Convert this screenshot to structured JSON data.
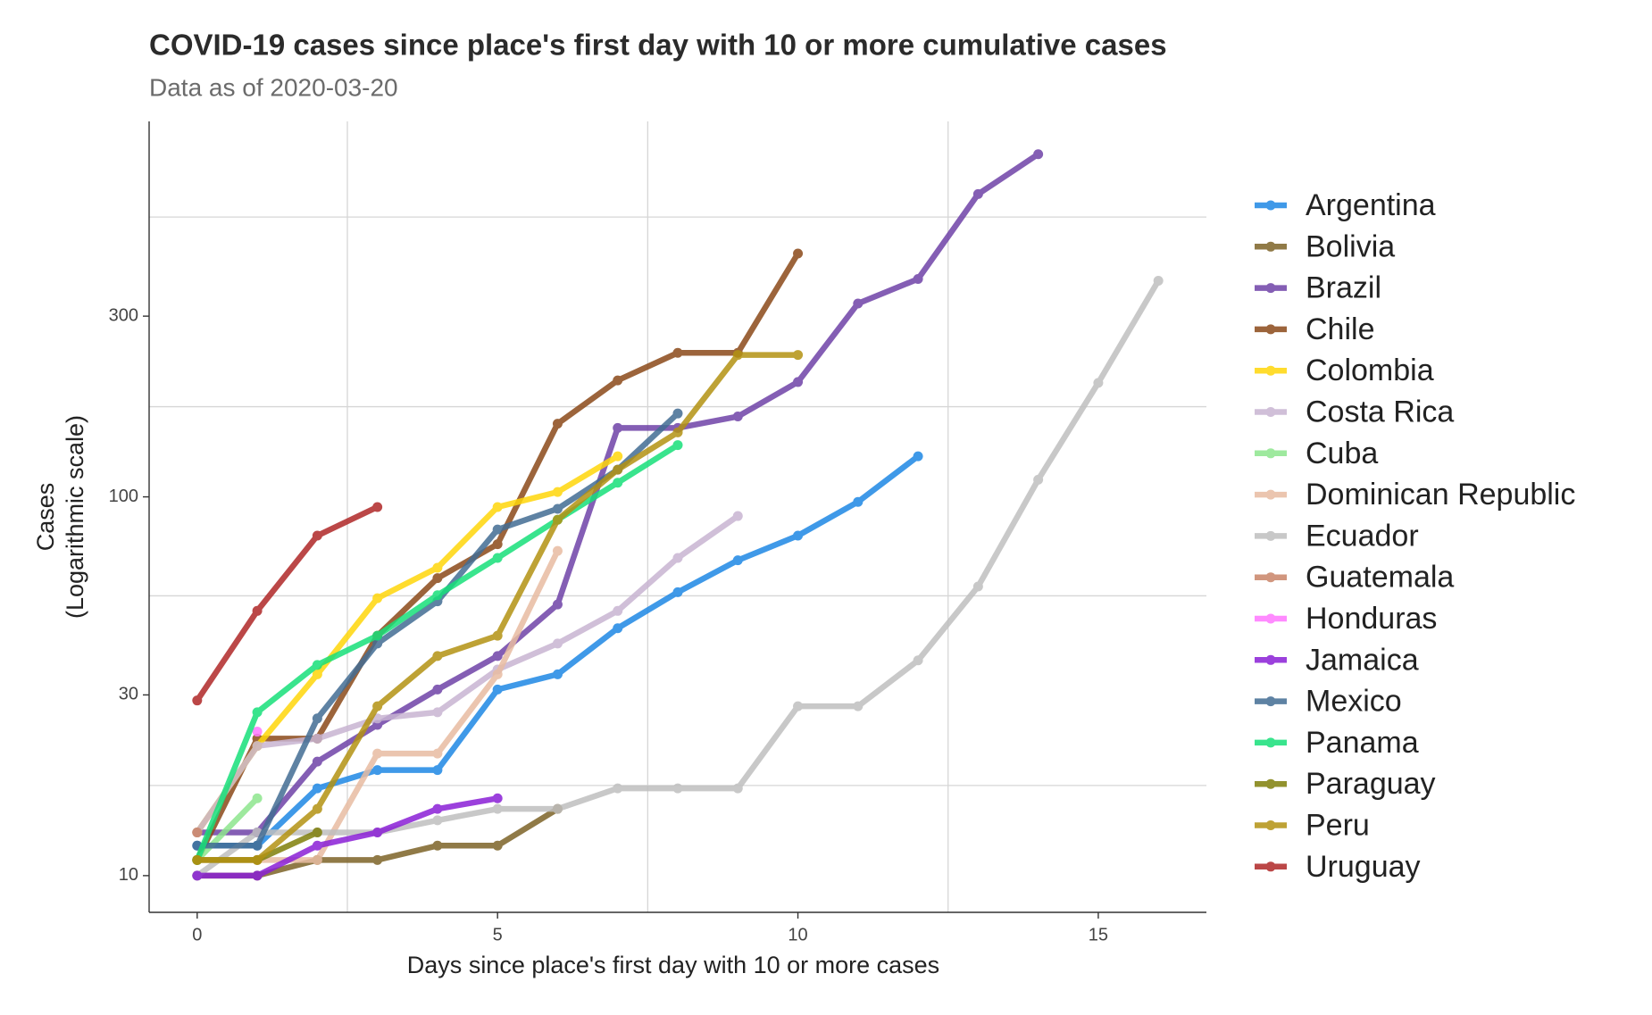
{
  "chart_data": {
    "type": "line",
    "title": "COVID-19 cases since place's first day with 10 or more cumulative cases",
    "subtitle": "Data as of 2020-03-20",
    "x_label": "Days since place's first day with 10 or more cases",
    "y_label": [
      "Cases",
      "(Logarithmic scale)"
    ],
    "y_log_scale": true,
    "xlim": [
      -0.8,
      16.8
    ],
    "ylim": [
      8,
      980
    ],
    "xticks": [
      0,
      5,
      10,
      15
    ],
    "yticks": [
      10,
      30,
      100,
      300
    ],
    "x_minor_grid": [
      2.5,
      7.5,
      12.5
    ],
    "y_minor_grid": [
      17.3,
      54.8,
      173,
      548
    ],
    "legend_position": "right",
    "series": [
      {
        "name": "Argentina",
        "color": "#1e88e5",
        "x": [
          0,
          1,
          2,
          3,
          4,
          5,
          6,
          7,
          8,
          9,
          10,
          11,
          12
        ],
        "values": [
          12,
          12,
          17,
          19,
          19,
          31,
          34,
          45,
          56,
          68,
          79,
          97,
          128
        ]
      },
      {
        "name": "Bolivia",
        "color": "#7d6328",
        "x": [
          0,
          1,
          2,
          3,
          4,
          5,
          6
        ],
        "values": [
          10,
          10,
          11,
          11,
          12,
          12,
          15
        ]
      },
      {
        "name": "Brazil",
        "color": "#6f42a8",
        "x": [
          0,
          1,
          2,
          3,
          4,
          5,
          6,
          7,
          8,
          9,
          10,
          11,
          12,
          13,
          14
        ],
        "values": [
          13,
          13,
          20,
          25,
          31,
          38,
          52,
          152,
          152,
          163,
          201,
          324,
          376,
          630,
          803
        ]
      },
      {
        "name": "Chile",
        "color": "#8b4a1a",
        "x": [
          0,
          1,
          2,
          3,
          4,
          5,
          6,
          7,
          8,
          9,
          10
        ],
        "values": [
          11,
          23,
          23,
          43,
          61,
          75,
          156,
          203,
          240,
          240,
          439
        ]
      },
      {
        "name": "Colombia",
        "color": "#ffd60a",
        "x": [
          0,
          1,
          2,
          3,
          4,
          5,
          6,
          7
        ],
        "values": [
          13,
          22,
          34,
          54,
          65,
          94,
          103,
          128
        ]
      },
      {
        "name": "Costa Rica",
        "color": "#c8b4d2",
        "x": [
          0,
          1,
          2,
          3,
          4,
          5,
          6,
          7,
          8,
          9
        ],
        "values": [
          13,
          22,
          23,
          26,
          27,
          35,
          41,
          50,
          69,
          89
        ]
      },
      {
        "name": "Cuba",
        "color": "#8ee68e",
        "x": [
          0,
          1
        ],
        "values": [
          11,
          16
        ]
      },
      {
        "name": "Dominican Republic",
        "color": "#e8bca2",
        "x": [
          0,
          1,
          2,
          3,
          4,
          5,
          6
        ],
        "values": [
          11,
          11,
          11,
          21,
          21,
          34,
          72
        ]
      },
      {
        "name": "Ecuador",
        "color": "#bfbfbf",
        "x": [
          0,
          1,
          2,
          3,
          4,
          5,
          6,
          7,
          8,
          9,
          10,
          11,
          12,
          13,
          14,
          15,
          16
        ],
        "values": [
          10,
          13,
          13,
          13,
          14,
          15,
          15,
          17,
          17,
          17,
          28,
          28,
          37,
          58,
          111,
          200,
          372
        ]
      },
      {
        "name": "Guatemala",
        "color": "#c98468",
        "x": [
          0
        ],
        "values": [
          13
        ]
      },
      {
        "name": "Honduras",
        "color": "#ff77ff",
        "x": [
          1
        ],
        "values": [
          24
        ]
      },
      {
        "name": "Jamaica",
        "color": "#8a1fd6",
        "x": [
          0,
          1,
          2,
          3,
          4,
          5
        ],
        "values": [
          10,
          10,
          12,
          13,
          15,
          16
        ]
      },
      {
        "name": "Mexico",
        "color": "#436d94",
        "x": [
          0,
          1,
          2,
          3,
          4,
          5,
          6,
          7,
          8
        ],
        "values": [
          12,
          12,
          26,
          41,
          53,
          82,
          93,
          118,
          166
        ]
      },
      {
        "name": "Panama",
        "color": "#17e07a",
        "x": [
          0,
          1,
          2,
          3,
          4,
          5,
          6,
          7,
          8
        ],
        "values": [
          11,
          27,
          36,
          43,
          55,
          69,
          87,
          109,
          137
        ]
      },
      {
        "name": "Paraguay",
        "color": "#7f7f0a",
        "x": [
          0,
          1,
          2
        ],
        "values": [
          11,
          11,
          13
        ]
      },
      {
        "name": "Peru",
        "color": "#b39212",
        "x": [
          0,
          1,
          2,
          3,
          4,
          5,
          6,
          7,
          8,
          9,
          10
        ],
        "values": [
          11,
          11,
          15,
          28,
          38,
          43,
          87,
          118,
          148,
          237,
          237
        ]
      },
      {
        "name": "Uruguay",
        "color": "#b02828",
        "x": [
          0,
          1,
          2,
          3
        ],
        "values": [
          29,
          50,
          79,
          94
        ]
      }
    ]
  }
}
